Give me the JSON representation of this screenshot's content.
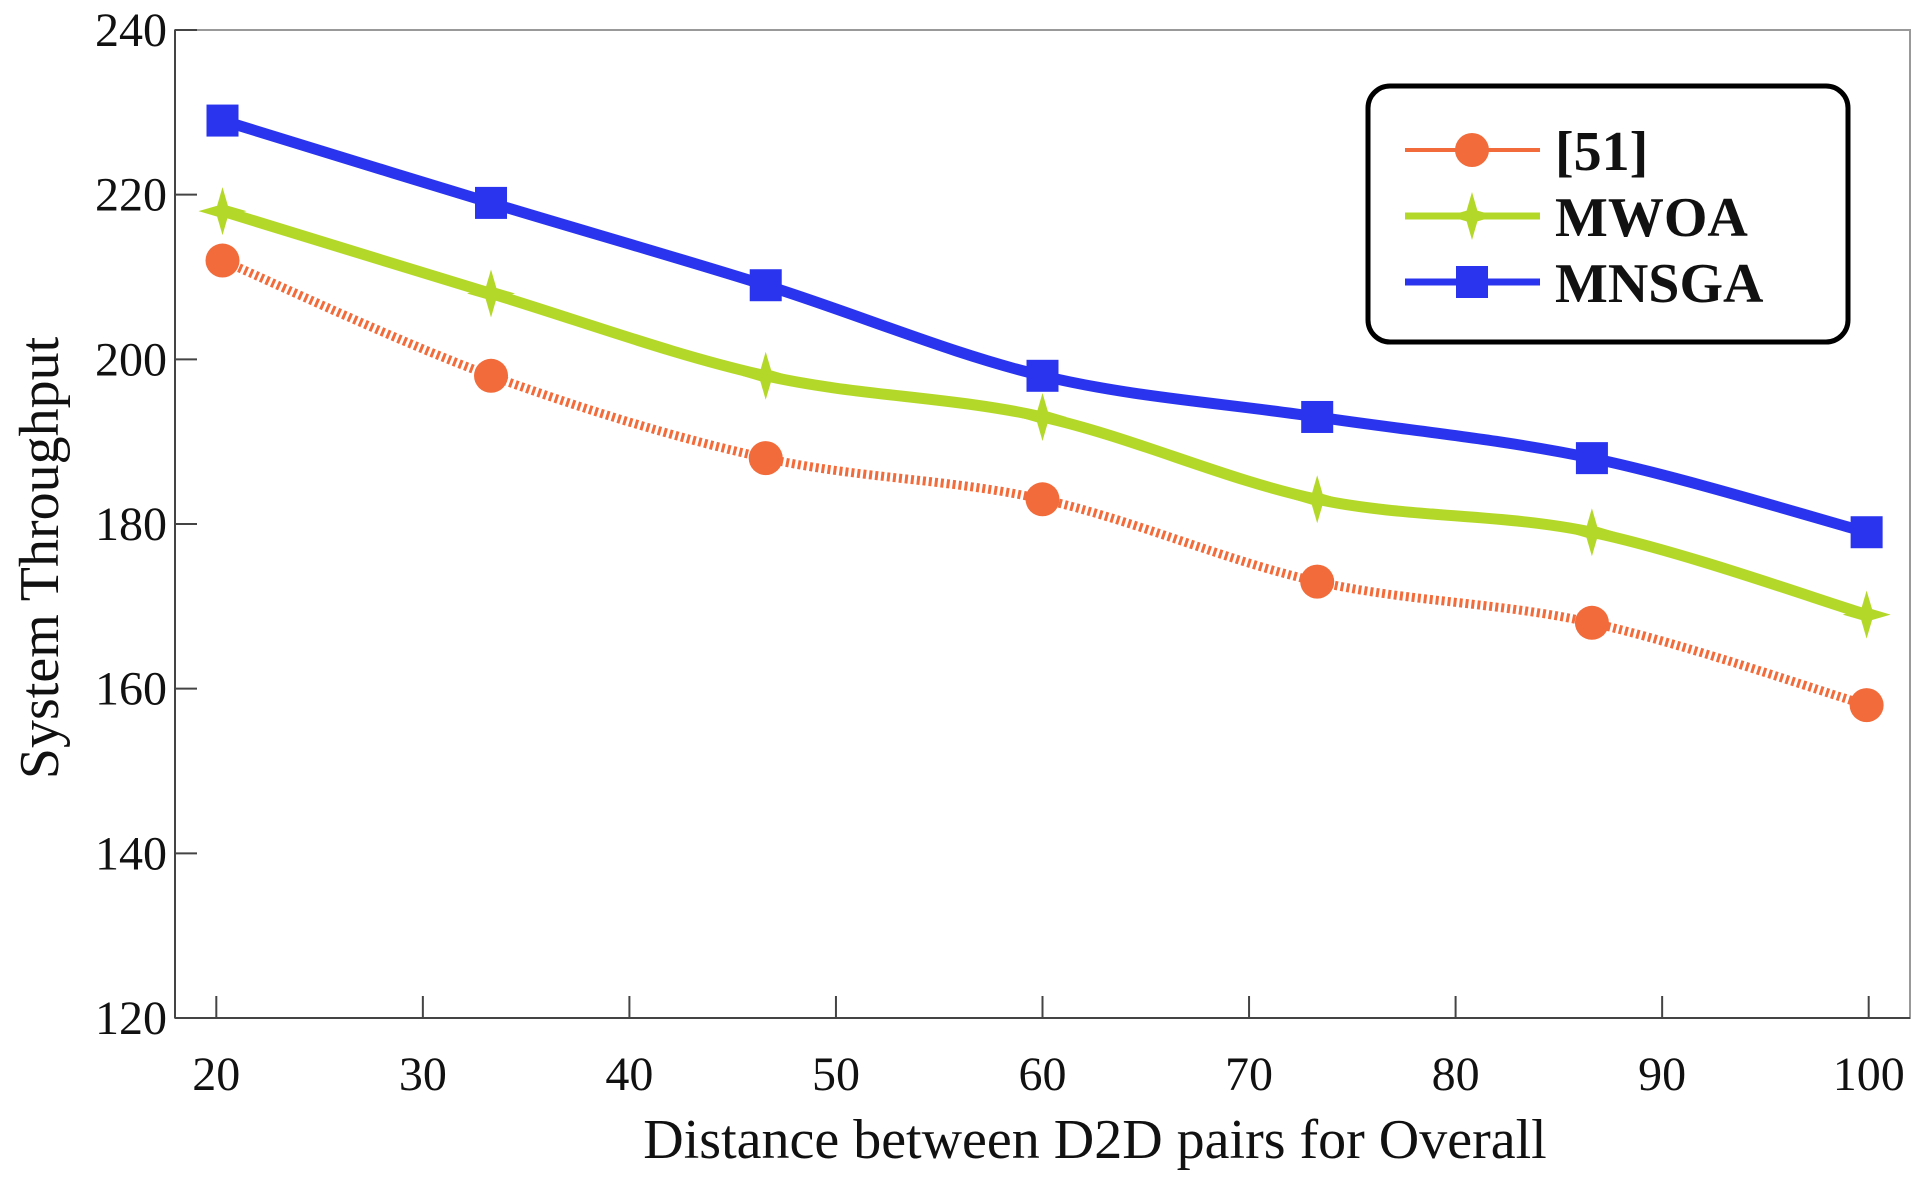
{
  "chart_data": {
    "type": "line",
    "title": "",
    "xlabel": "Distance between D2D pairs for Overall",
    "ylabel": "System Throughput",
    "xlim": [
      18,
      102
    ],
    "ylim": [
      120,
      240
    ],
    "xticks": [
      20,
      30,
      40,
      50,
      60,
      70,
      80,
      90,
      100
    ],
    "yticks": [
      120,
      140,
      160,
      180,
      200,
      220,
      240
    ],
    "xtick_labels": [
      "20",
      "30",
      "40",
      "50",
      "60",
      "70",
      "80",
      "90",
      "100"
    ],
    "ytick_labels": [
      "120",
      "140",
      "160",
      "180",
      "200",
      "220",
      "240"
    ],
    "x": [
      20.3,
      33.3,
      46.6,
      60.0,
      73.3,
      86.6,
      99.9
    ],
    "series": [
      {
        "name": "[51]",
        "marker": "circle",
        "style": "dotted",
        "color": "#f26b3a",
        "values": [
          212,
          198,
          188,
          183,
          173,
          168,
          158
        ]
      },
      {
        "name": "MWOA",
        "marker": "star",
        "style": "solid",
        "color": "#b4d82a",
        "values": [
          218,
          208,
          198,
          193,
          183,
          179,
          169
        ]
      },
      {
        "name": "MNSGA",
        "marker": "square",
        "style": "solid",
        "color": "#2a34ee",
        "values": [
          229,
          219,
          209,
          198,
          193,
          188,
          179
        ]
      }
    ],
    "legend": {
      "position": "top-right",
      "entries": [
        "[51]",
        "MWOA",
        "MNSGA"
      ]
    },
    "grid": false
  }
}
